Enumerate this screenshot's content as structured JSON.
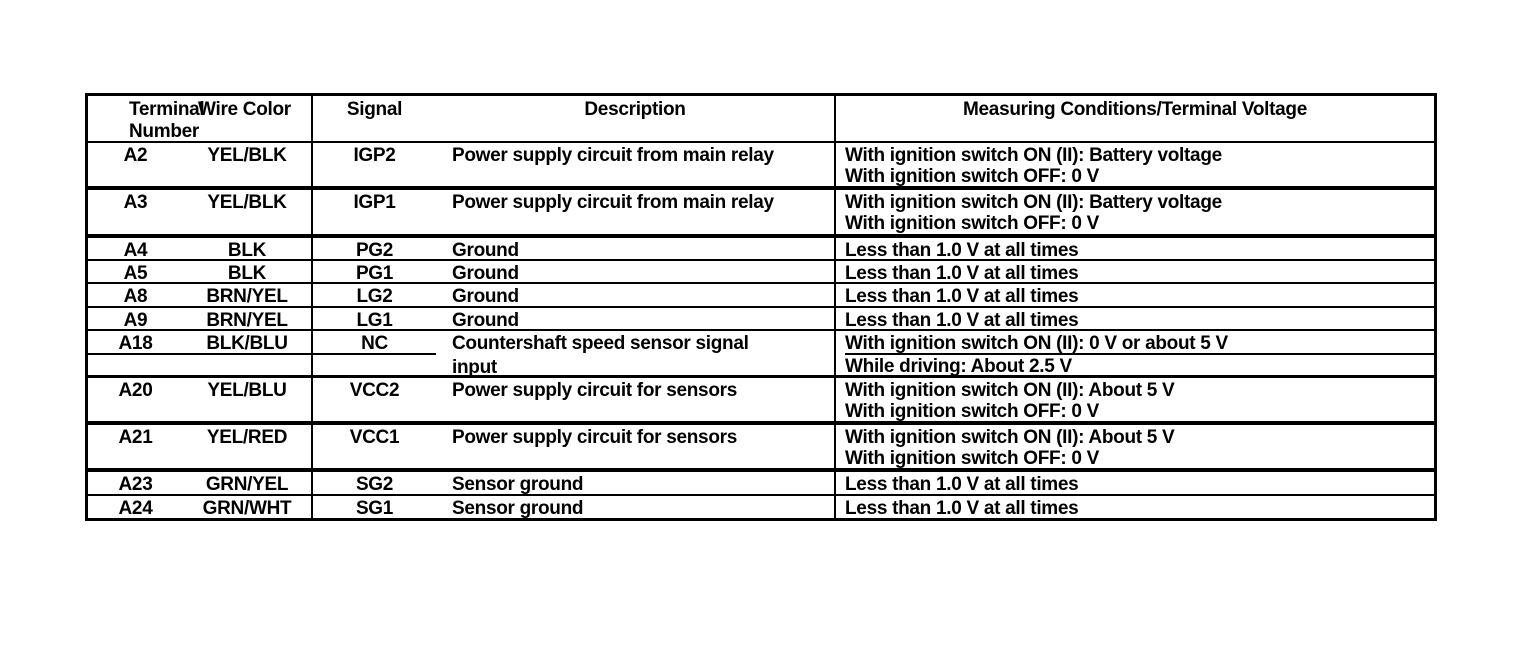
{
  "table": {
    "headers": {
      "terminal": "Terminal Number",
      "wire_color": "Wire Color",
      "signal": "Signal",
      "description": "Description",
      "measuring": "Measuring Conditions/Terminal Voltage"
    },
    "rows": [
      {
        "terminal": "A2",
        "wire_color": "YEL/BLK",
        "signal": "IGP2",
        "description": [
          "Power supply circuit from main relay"
        ],
        "conditions": [
          "With ignition switch ON (II): Battery voltage",
          "With ignition switch OFF: 0 V"
        ]
      },
      {
        "terminal": "A3",
        "wire_color": "YEL/BLK",
        "signal": "IGP1",
        "description": [
          "Power supply circuit from main relay"
        ],
        "conditions": [
          "With ignition switch ON (II): Battery voltage",
          "With ignition switch OFF: 0 V"
        ]
      },
      {
        "terminal": "A4",
        "wire_color": "BLK",
        "signal": "PG2",
        "description": [
          "Ground"
        ],
        "conditions": [
          "Less than 1.0 V at all times"
        ]
      },
      {
        "terminal": "A5",
        "wire_color": "BLK",
        "signal": "PG1",
        "description": [
          "Ground"
        ],
        "conditions": [
          "Less than 1.0 V at all times"
        ]
      },
      {
        "terminal": "A8",
        "wire_color": "BRN/YEL",
        "signal": "LG2",
        "description": [
          "Ground"
        ],
        "conditions": [
          "Less than 1.0 V at all times"
        ]
      },
      {
        "terminal": "A9",
        "wire_color": "BRN/YEL",
        "signal": "LG1",
        "description": [
          "Ground"
        ],
        "conditions": [
          "Less than 1.0 V at all times"
        ]
      },
      {
        "terminal": "A18",
        "wire_color": "BLK/BLU",
        "signal": "NC",
        "description": [
          "Countershaft speed sensor signal",
          "input"
        ],
        "conditions": [
          "With ignition switch ON (II): 0 V or about 5 V",
          "While driving: About 2.5 V"
        ]
      },
      {
        "terminal": "A20",
        "wire_color": "YEL/BLU",
        "signal": "VCC2",
        "description": [
          "Power supply circuit for sensors"
        ],
        "conditions": [
          "With ignition switch ON (II): About 5 V",
          "With ignition switch OFF: 0 V"
        ]
      },
      {
        "terminal": "A21",
        "wire_color": "YEL/RED",
        "signal": "VCC1",
        "description": [
          "Power supply circuit for sensors"
        ],
        "conditions": [
          "With ignition switch ON (II): About 5 V",
          "With ignition switch OFF: 0 V"
        ]
      },
      {
        "terminal": "A23",
        "wire_color": "GRN/YEL",
        "signal": "SG2",
        "description": [
          "Sensor ground"
        ],
        "conditions": [
          "Less than 1.0 V at all times"
        ]
      },
      {
        "terminal": "A24",
        "wire_color": "GRN/WHT",
        "signal": "SG1",
        "description": [
          "Sensor ground"
        ],
        "conditions": [
          "Less than 1.0 V at all times"
        ]
      }
    ]
  },
  "colors": {
    "text": "#000000",
    "border": "#000000",
    "background": "#ffffff"
  }
}
